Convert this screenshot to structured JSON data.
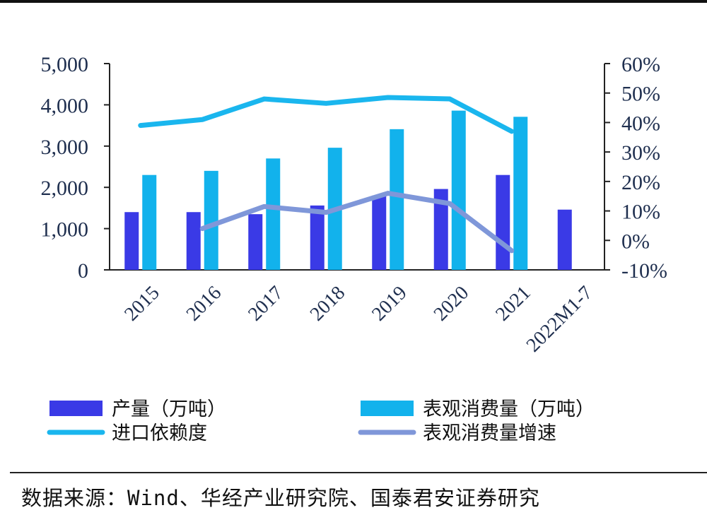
{
  "chart_data": {
    "type": "bar",
    "categories": [
      "2015",
      "2016",
      "2017",
      "2018",
      "2019",
      "2020",
      "2021",
      "2022M1-7"
    ],
    "series": [
      {
        "name": "产量（万吨）",
        "type": "bar",
        "axis": "left",
        "color": "#3a3ae6",
        "values": [
          1400,
          1400,
          1350,
          1560,
          1800,
          1960,
          2300,
          1460
        ]
      },
      {
        "name": "表观消费量（万吨）",
        "type": "bar",
        "axis": "left",
        "color": "#12b2ec",
        "values": [
          2300,
          2400,
          2700,
          2960,
          3410,
          3860,
          3710,
          null
        ]
      },
      {
        "name": "进口依赖度",
        "type": "line",
        "axis": "right",
        "color": "#1ab6ee",
        "values": [
          39,
          41,
          48,
          46.5,
          48.5,
          48,
          37,
          null
        ]
      },
      {
        "name": "表观消费量增速",
        "type": "line",
        "axis": "right",
        "color": "#7f97d9",
        "values": [
          null,
          4,
          11.5,
          9.5,
          16,
          12.5,
          -3.5,
          null
        ]
      }
    ],
    "y_left": {
      "lim": [
        0,
        5000
      ],
      "ticks": [
        "0",
        "1,000",
        "2,000",
        "3,000",
        "4,000",
        "5,000"
      ]
    },
    "y_right": {
      "lim": [
        -10,
        60
      ],
      "ticks": [
        "-10%",
        "0%",
        "10%",
        "20%",
        "30%",
        "40%",
        "50%",
        "60%"
      ]
    },
    "legend_position": "bottom",
    "grid": false
  },
  "source_note": "数据来源：Wind、华经产业研究院、国泰君安证券研究"
}
